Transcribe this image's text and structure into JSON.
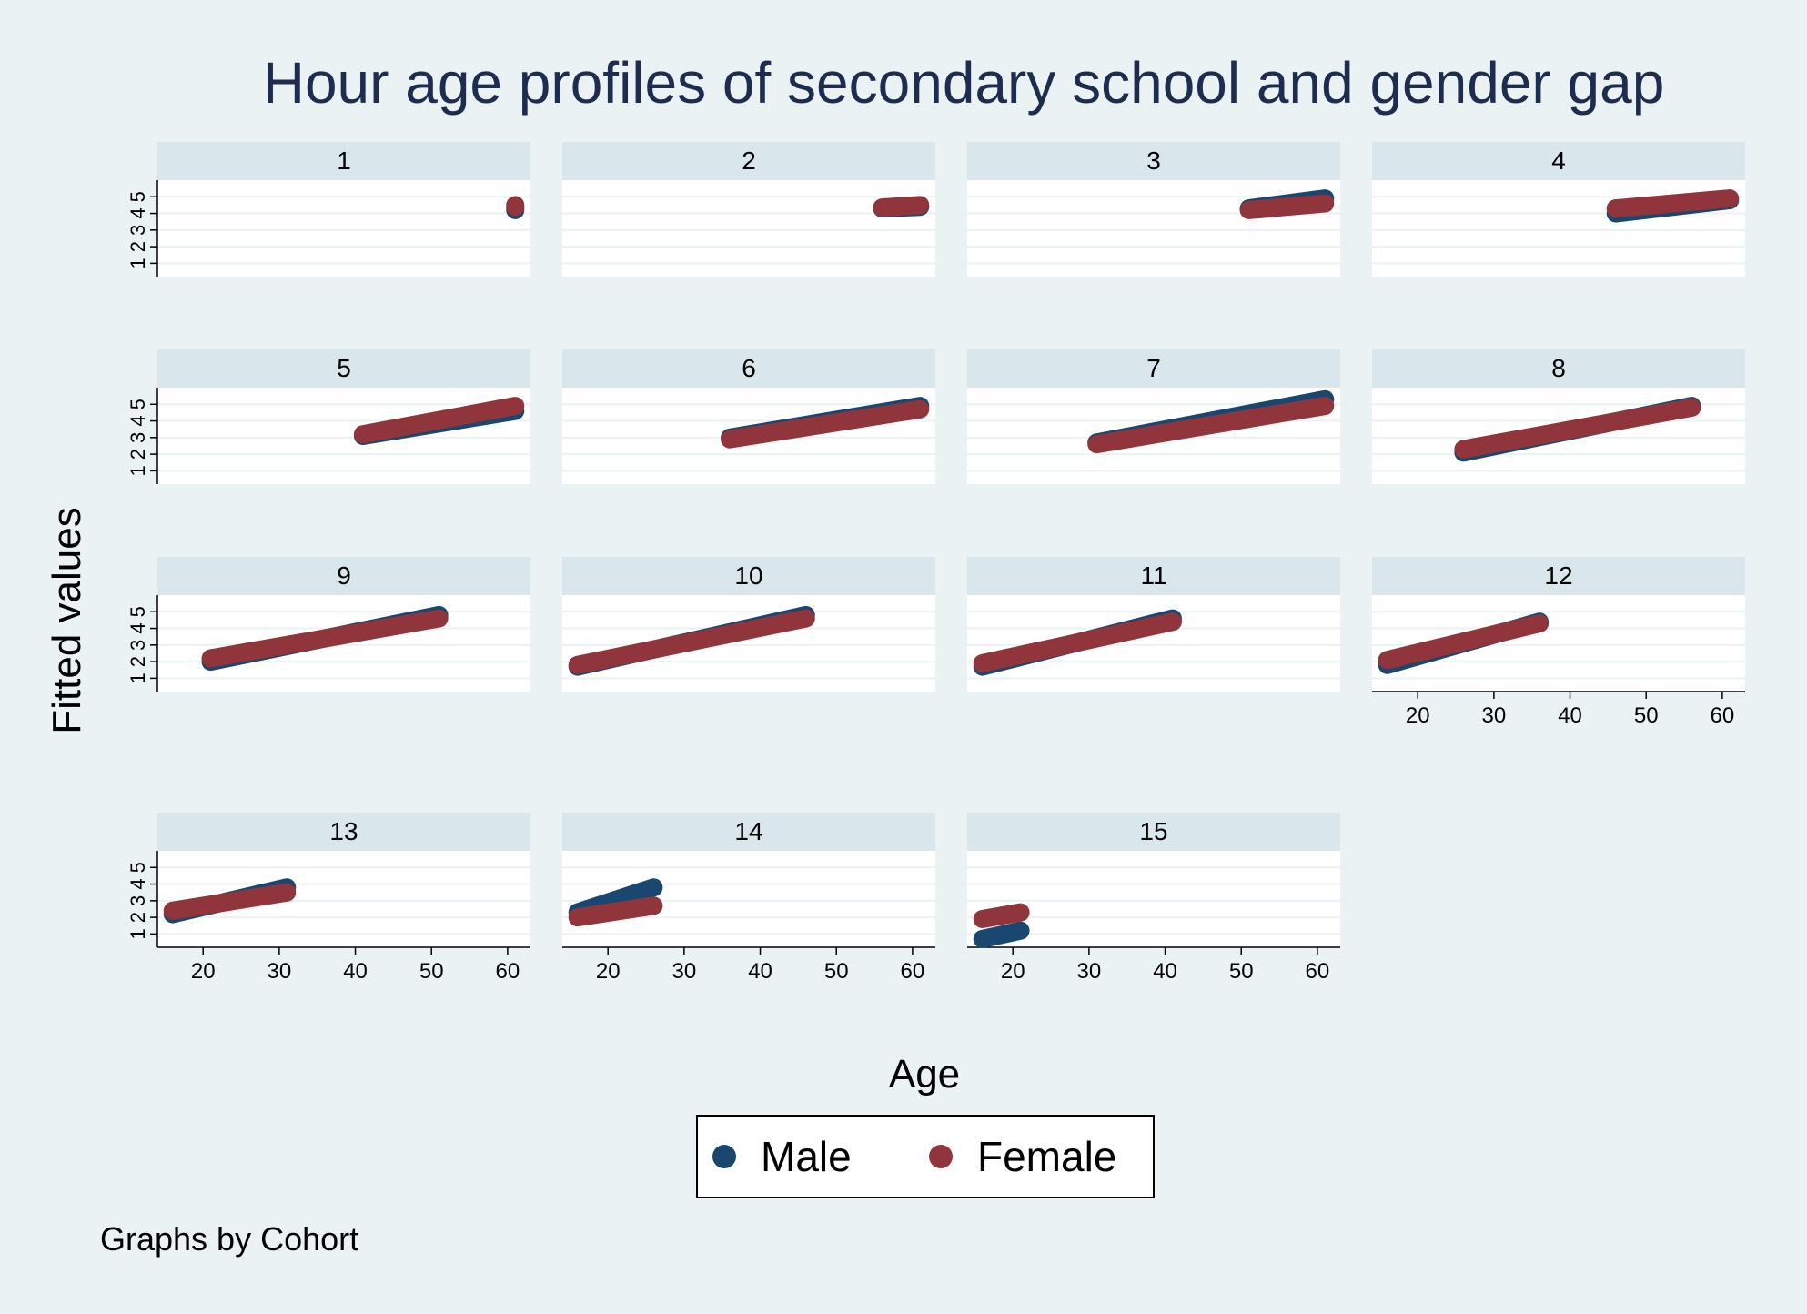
{
  "chart_data": {
    "type": "scatter",
    "title": "Hour age profiles of secondary school and gender gap",
    "xlabel": "Age",
    "ylabel": "Fitted values",
    "note": "Graphs by Cohort",
    "xlim": [
      14,
      63
    ],
    "ylim": [
      0.2,
      6
    ],
    "xticks": [
      20,
      30,
      40,
      50,
      60
    ],
    "yticks": [
      1,
      2,
      3,
      4,
      5
    ],
    "grid": true,
    "legend": "bottom-center",
    "colors": {
      "Male": "#1a476f",
      "Female": "#90353b"
    },
    "series_names": [
      "Male",
      "Female"
    ],
    "panels": [
      {
        "label": "1",
        "male": [
          [
            61,
            4.2
          ],
          [
            61,
            4.3
          ]
        ],
        "female": [
          [
            61,
            4.5
          ],
          [
            61,
            4.4
          ]
        ]
      },
      {
        "label": "2",
        "male": [
          [
            56,
            4.3
          ],
          [
            61,
            4.4
          ]
        ],
        "female": [
          [
            56,
            4.35
          ],
          [
            61,
            4.5
          ]
        ]
      },
      {
        "label": "3",
        "male": [
          [
            51,
            4.3
          ],
          [
            61,
            4.9
          ]
        ],
        "female": [
          [
            51,
            4.2
          ],
          [
            61,
            4.6
          ]
        ]
      },
      {
        "label": "4",
        "male": [
          [
            46,
            4.0
          ],
          [
            61,
            4.8
          ]
        ],
        "female": [
          [
            46,
            4.3
          ],
          [
            61,
            4.9
          ]
        ]
      },
      {
        "label": "5",
        "male": [
          [
            41,
            3.1
          ],
          [
            61,
            4.6
          ]
        ],
        "female": [
          [
            41,
            3.2
          ],
          [
            61,
            4.9
          ]
        ]
      },
      {
        "label": "6",
        "male": [
          [
            36,
            3.0
          ],
          [
            61,
            4.9
          ]
        ],
        "female": [
          [
            36,
            2.9
          ],
          [
            61,
            4.7
          ]
        ]
      },
      {
        "label": "7",
        "male": [
          [
            31,
            2.7
          ],
          [
            61,
            5.3
          ]
        ],
        "female": [
          [
            31,
            2.6
          ],
          [
            61,
            4.9
          ]
        ]
      },
      {
        "label": "8",
        "male": [
          [
            26,
            2.1
          ],
          [
            56,
            4.9
          ]
        ],
        "female": [
          [
            26,
            2.3
          ],
          [
            56,
            4.8
          ]
        ]
      },
      {
        "label": "9",
        "male": [
          [
            21,
            2.0
          ],
          [
            51,
            4.8
          ]
        ],
        "female": [
          [
            21,
            2.2
          ],
          [
            51,
            4.6
          ]
        ]
      },
      {
        "label": "10",
        "male": [
          [
            16,
            1.7
          ],
          [
            46,
            4.8
          ]
        ],
        "female": [
          [
            16,
            1.8
          ],
          [
            46,
            4.6
          ]
        ]
      },
      {
        "label": "11",
        "male": [
          [
            16,
            1.7
          ],
          [
            41,
            4.6
          ]
        ],
        "female": [
          [
            16,
            1.9
          ],
          [
            41,
            4.4
          ]
        ]
      },
      {
        "label": "12",
        "male": [
          [
            16,
            1.8
          ],
          [
            36,
            4.4
          ]
        ],
        "female": [
          [
            16,
            2.1
          ],
          [
            36,
            4.3
          ]
        ]
      },
      {
        "label": "13",
        "male": [
          [
            16,
            2.2
          ],
          [
            31,
            3.8
          ]
        ],
        "female": [
          [
            16,
            2.4
          ],
          [
            31,
            3.5
          ]
        ]
      },
      {
        "label": "14",
        "male": [
          [
            16,
            2.3
          ],
          [
            26,
            3.8
          ]
        ],
        "female": [
          [
            16,
            2.0
          ],
          [
            26,
            2.7
          ]
        ]
      },
      {
        "label": "15",
        "male": [
          [
            16,
            0.7
          ],
          [
            21,
            1.2
          ]
        ],
        "female": [
          [
            16,
            1.9
          ],
          [
            21,
            2.3
          ]
        ]
      }
    ]
  }
}
